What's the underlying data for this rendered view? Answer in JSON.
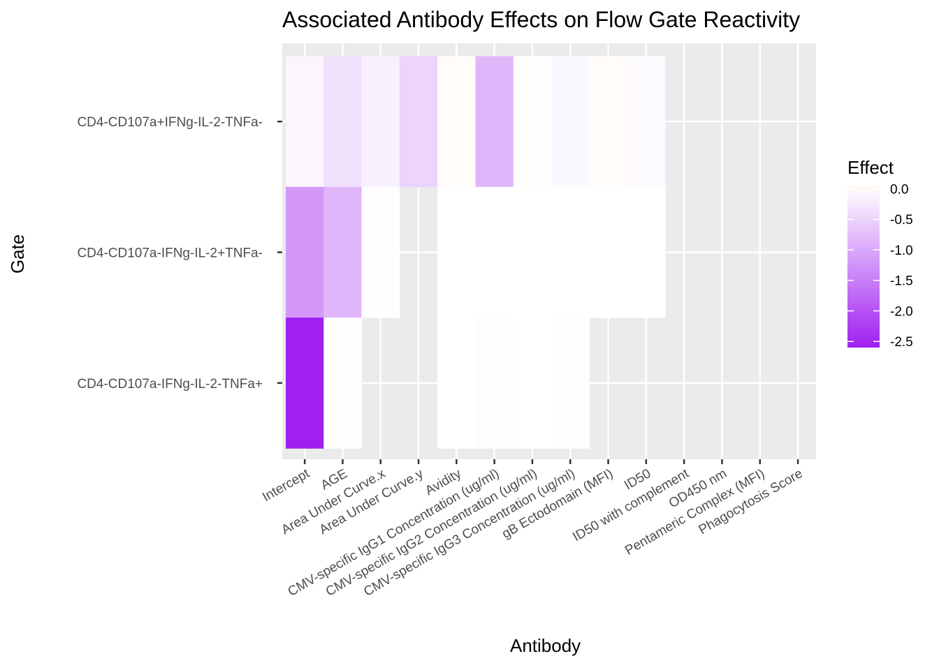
{
  "chart_data": {
    "type": "heatmap",
    "title": "Associated Antibody Effects on Flow Gate Reactivity",
    "xlabel": "Antibody",
    "ylabel": "Gate",
    "x_categories": [
      "Intercept",
      "AGE",
      "Area Under Curve.x",
      "Area Under Curve.y",
      "Avidity",
      "CMV-specific IgG1 Concentration (ug/ml)",
      "CMV-specific IgG2 Concentration (ug/ml)",
      "CMV-specific IgG3 Concentration (ug/ml)",
      "gB Ectodomain (MFI)",
      "ID50",
      "ID50 with complement",
      "OD450 nm",
      "Pentameric Complex (MFI)",
      "Phagocytosis Score"
    ],
    "y_categories": [
      "CD4-CD107a+IFNg-IL-2-TNFa-",
      "CD4-CD107a-IFNg-IL-2+TNFa-",
      "CD4-CD107a-IFNg-IL-2-TNFa+"
    ],
    "values": [
      [
        -0.12,
        -0.35,
        -0.18,
        -0.5,
        0.02,
        -0.85,
        -0.01,
        -0.08,
        0.02,
        -0.05,
        null,
        null,
        null,
        null
      ],
      [
        -1.2,
        -0.85,
        -0.01,
        null,
        0.0,
        0.0,
        0.0,
        0.0,
        0.0,
        0.0,
        null,
        null,
        null,
        null
      ],
      [
        -2.6,
        -0.01,
        null,
        null,
        0.0,
        -0.03,
        0.0,
        -0.02,
        null,
        null,
        null,
        null,
        null,
        null
      ]
    ],
    "legend": {
      "title": "Effect",
      "position": "right",
      "ticks": [
        0.0,
        -0.5,
        -1.0,
        -1.5,
        -2.0,
        -2.5
      ],
      "tick_labels": [
        "0.0",
        "-0.5",
        "-1.0",
        "-1.5",
        "-2.0",
        "-2.5"
      ],
      "range": [
        -2.6,
        0.05
      ]
    },
    "colors": {
      "low": "#a020f0",
      "mid": "#ffffff",
      "high": "#fff8f0",
      "panel": "#ebebeb",
      "grid": "#ffffff"
    },
    "grid": true
  }
}
